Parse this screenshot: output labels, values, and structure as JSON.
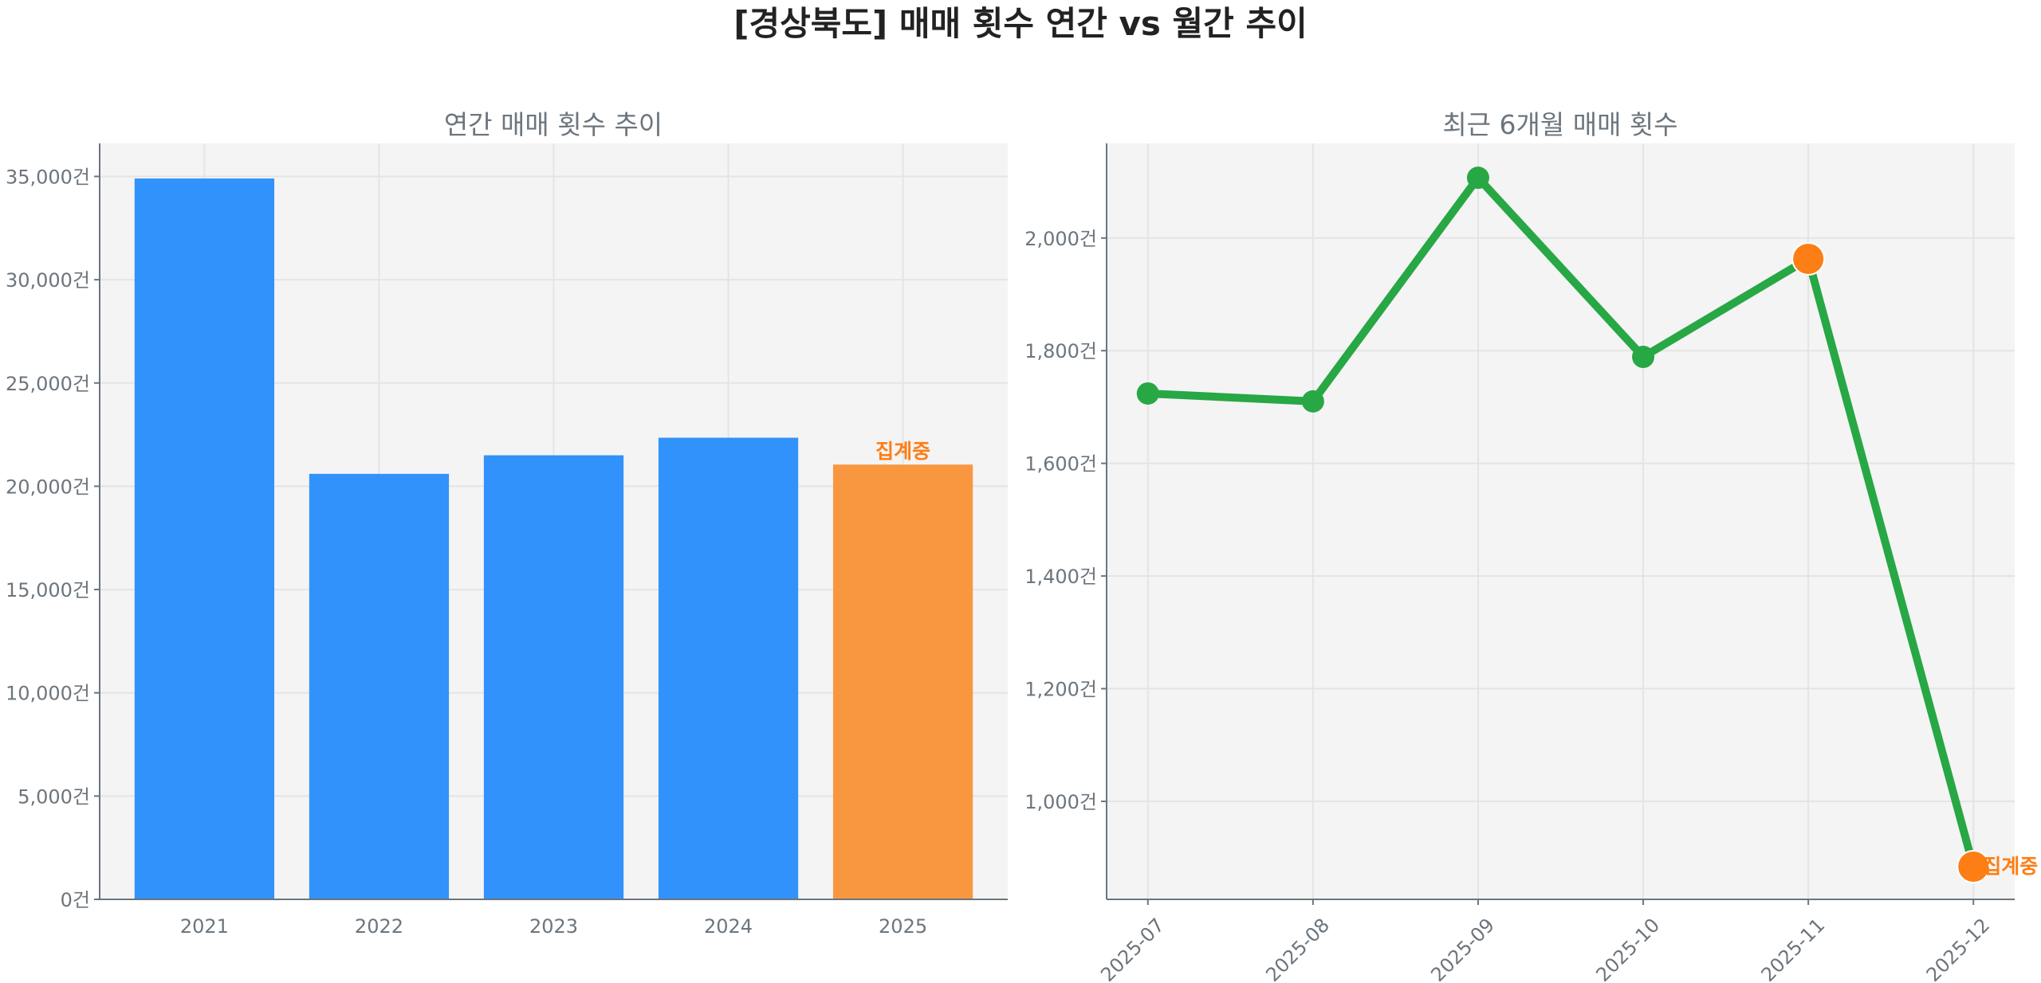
{
  "title": "[경상북도] 매매 횟수 연간 vs 월간 추이",
  "colors": {
    "bar": "#3192fb",
    "bar_partial": "#f99740",
    "line": "#28a745",
    "marker_partial": "#fd7e14",
    "plot_bg": "#f4f4f4",
    "note": "#fd7e14"
  },
  "chart_data": [
    {
      "type": "bar",
      "title": "연간 매매 횟수 추이",
      "categories": [
        "2021",
        "2022",
        "2023",
        "2024",
        "2025"
      ],
      "values": [
        34900,
        20600,
        21500,
        22350,
        21050
      ],
      "partial_index": 4,
      "annotation": "집계중",
      "ylim": [
        0,
        36600
      ],
      "yticks": [
        0,
        5000,
        10000,
        15000,
        20000,
        25000,
        30000,
        35000
      ],
      "ytick_labels": [
        "0건",
        "5,000건",
        "10,000건",
        "15,000건",
        "20,000건",
        "25,000건",
        "30,000건",
        "35,000건"
      ],
      "grid": true
    },
    {
      "type": "line",
      "title": "최근 6개월 매매 횟수",
      "categories": [
        "2025-07",
        "2025-08",
        "2025-09",
        "2025-10",
        "2025-11",
        "2025-12"
      ],
      "values": [
        1724,
        1710,
        2107,
        1789,
        1963,
        884
      ],
      "highlight_indices": [
        4,
        5
      ],
      "annotation": "집계중",
      "ylim": [
        826,
        2168
      ],
      "yticks": [
        1000,
        1200,
        1400,
        1600,
        1800,
        2000
      ],
      "ytick_labels": [
        "1,000건",
        "1,200건",
        "1,400건",
        "1,600건",
        "1,800건",
        "2,000건"
      ],
      "grid": true
    }
  ]
}
